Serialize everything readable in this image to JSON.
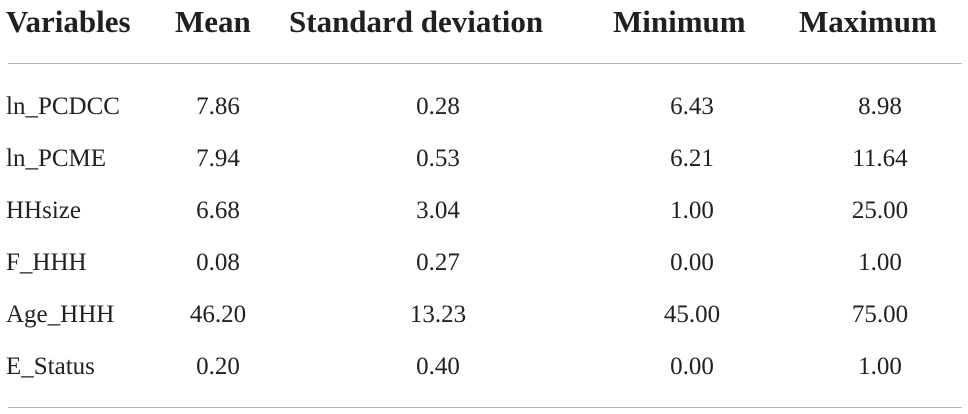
{
  "table": {
    "headers": [
      "Variables",
      "Mean",
      "Standard deviation",
      "Minimum",
      "Maximum"
    ],
    "rows": [
      [
        "ln_PCDCC",
        "7.86",
        "0.28",
        "6.43",
        "8.98"
      ],
      [
        "ln_PCME",
        "7.94",
        "0.53",
        "6.21",
        "11.64"
      ],
      [
        "HHsize",
        "6.68",
        "3.04",
        "1.00",
        "25.00"
      ],
      [
        "F_HHH",
        "0.08",
        "0.27",
        "0.00",
        "1.00"
      ],
      [
        "Age_HHH",
        "46.20",
        "13.23",
        "45.00",
        "75.00"
      ],
      [
        "E_Status",
        "0.20",
        "0.40",
        "0.00",
        "1.00"
      ]
    ]
  }
}
